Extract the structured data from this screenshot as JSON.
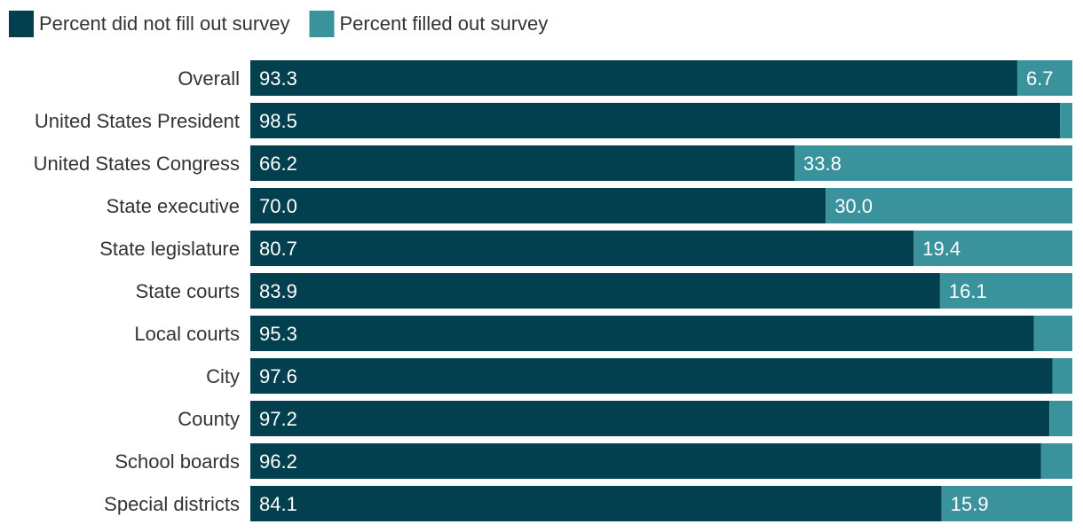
{
  "chart_data": {
    "type": "bar",
    "orientation": "horizontal",
    "stacked": true,
    "title": "",
    "xlabel": "",
    "ylabel": "",
    "xlim": [
      0,
      100
    ],
    "grid": false,
    "legend_position": "top-left",
    "categories": [
      "Overall",
      "United States President",
      "United States Congress",
      "State executive",
      "State legislature",
      "State courts",
      "Local courts",
      "City",
      "County",
      "School boards",
      "Special districts"
    ],
    "series": [
      {
        "name": "Percent did not fill out survey",
        "color": "#03404f",
        "values": [
          93.3,
          98.5,
          66.2,
          70.0,
          80.7,
          83.9,
          95.3,
          97.6,
          97.2,
          96.2,
          84.1
        ],
        "labels": [
          "93.3",
          "98.5",
          "66.2",
          "70.0",
          "80.7",
          "83.9",
          "95.3",
          "97.6",
          "97.2",
          "96.2",
          "84.1"
        ]
      },
      {
        "name": "Percent filled out survey",
        "color": "#3a929c",
        "values": [
          6.7,
          1.5,
          33.8,
          30.0,
          19.4,
          16.1,
          4.7,
          2.4,
          2.8,
          3.8,
          15.9
        ],
        "labels": [
          "6.7",
          "",
          "33.8",
          "30.0",
          "19.4",
          "16.1",
          "",
          "",
          "",
          "",
          "15.9"
        ]
      }
    ]
  }
}
